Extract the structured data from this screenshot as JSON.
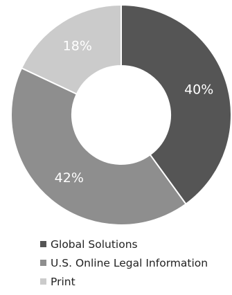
{
  "chart_data": {
    "type": "pie",
    "donut": true,
    "categories": [
      "Global Solutions",
      "U.S. Online Legal Information",
      "Print"
    ],
    "values": [
      40,
      42,
      18
    ],
    "value_labels": [
      "40%",
      "42%",
      "18%"
    ],
    "colors": [
      "#555555",
      "#8e8e8e",
      "#cbcbcb"
    ],
    "legend": {
      "placement": "bottom",
      "items": [
        {
          "label": "Global Solutions",
          "color": "#555555"
        },
        {
          "label": "U.S. Online Legal Information",
          "color": "#8e8e8e"
        },
        {
          "label": "Print",
          "color": "#cbcbcb"
        }
      ]
    }
  }
}
